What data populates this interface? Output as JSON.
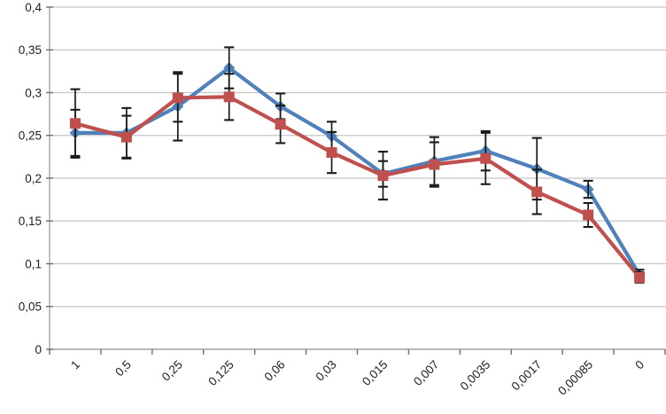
{
  "chart_data": {
    "type": "line",
    "title": "",
    "xlabel": "",
    "ylabel": "",
    "decimal_separator": ",",
    "categories": [
      "1",
      "0,5",
      "0,25",
      "0,125",
      "0,06",
      "0,03",
      "0,015",
      "0,007",
      "0,0035",
      "0,0017",
      "0,00085",
      "0"
    ],
    "series": [
      {
        "name": "series-blue",
        "marker": "diamond",
        "color": "#4F81BD",
        "values": [
          0.253,
          0.253,
          0.284,
          0.329,
          0.284,
          0.249,
          0.205,
          0.22,
          0.232,
          0.211,
          0.187,
          0.087
        ],
        "errors": [
          0.027,
          0.029,
          0.04,
          0.024,
          0.015,
          0.017,
          0.015,
          0.028,
          0.023,
          0.036,
          0.01,
          0.006
        ]
      },
      {
        "name": "series-red",
        "marker": "square",
        "color": "#C0504D",
        "values": [
          0.264,
          0.248,
          0.294,
          0.295,
          0.263,
          0.23,
          0.203,
          0.216,
          0.223,
          0.184,
          0.157,
          0.084
        ],
        "errors": [
          0.04,
          0.025,
          0.028,
          0.027,
          0.022,
          0.024,
          0.028,
          0.026,
          0.03,
          0.026,
          0.014,
          0.006
        ]
      }
    ],
    "y_axis": {
      "min": 0,
      "max": 0.4,
      "tick_step": 0.05,
      "tick_labels": [
        "0",
        "0,05",
        "0,1",
        "0,15",
        "0,2",
        "0,25",
        "0,3",
        "0,35",
        "0,4"
      ]
    },
    "legend": "none",
    "grid": "horizontal",
    "error_bar_color": "#1a1a1a",
    "gridline_color": "#c6c6c6",
    "axis_color": "#a6a6a6",
    "tick_color": "#6e6e6e",
    "label_color": "#1f1f1f",
    "background_color": "#ffffff"
  }
}
